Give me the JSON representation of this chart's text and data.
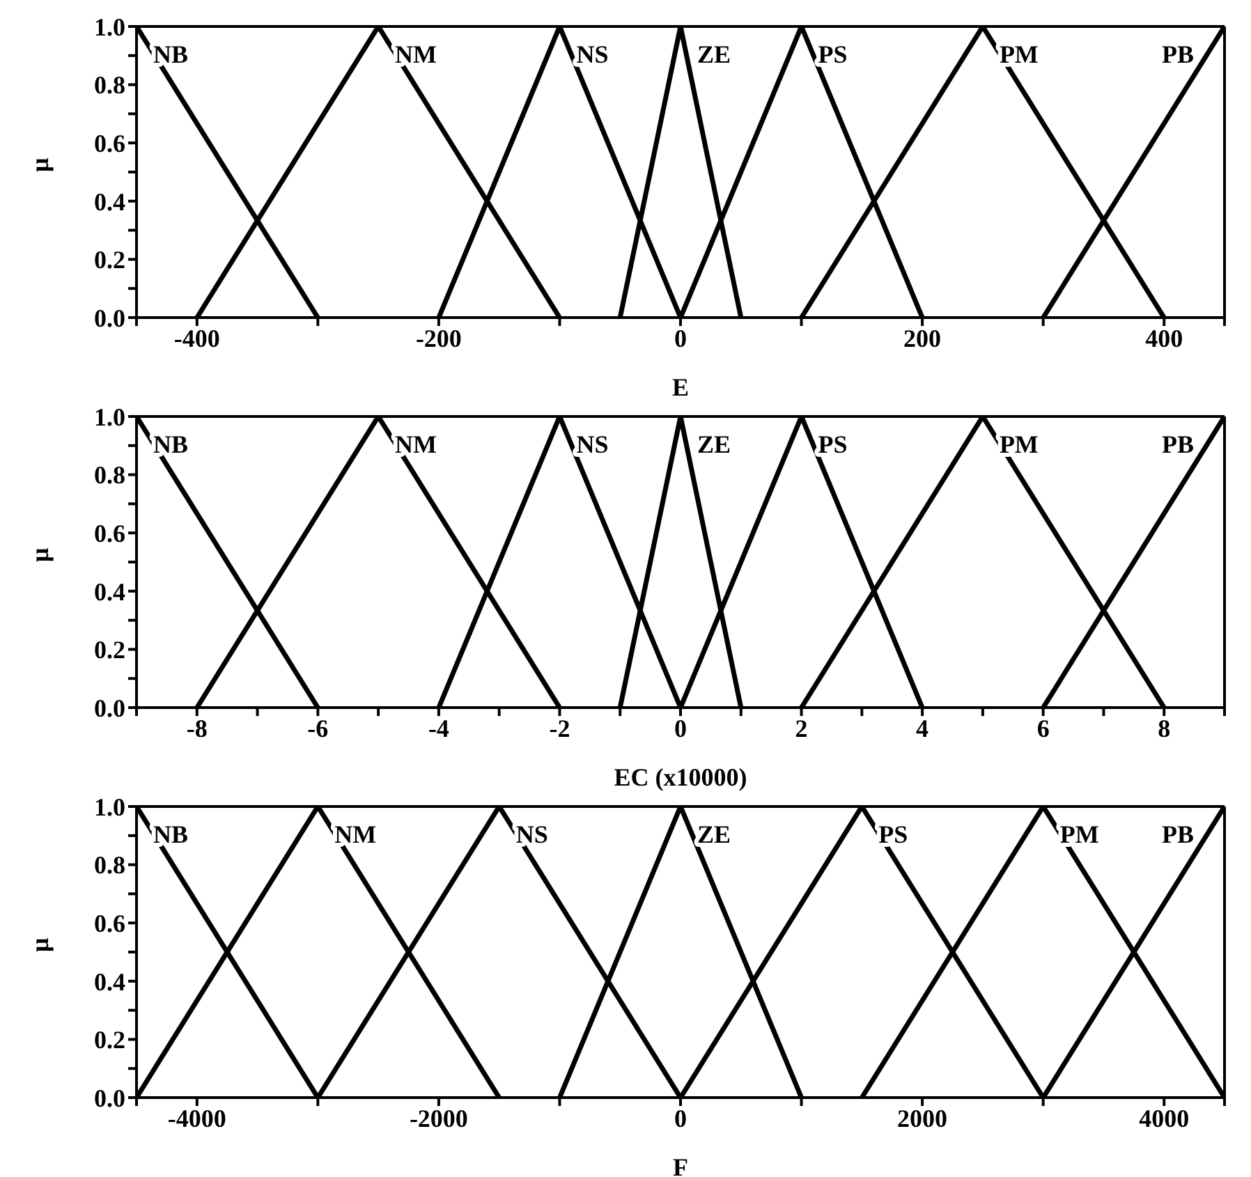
{
  "chart_data": [
    {
      "type": "line",
      "xlabel": "E",
      "ylabel": "μ",
      "xlim": [
        -450,
        450
      ],
      "xticks": [
        {
          "value": -450,
          "label": null
        },
        -400,
        {
          "value": -300,
          "label": null
        },
        -200,
        {
          "value": -100,
          "label": null
        },
        0,
        {
          "value": 100,
          "label": null
        },
        200,
        {
          "value": 300,
          "label": null
        },
        400,
        {
          "value": 450,
          "label": null
        }
      ],
      "ylim": [
        0,
        1
      ],
      "yticks": [
        {
          "value": 0,
          "label": "0.0"
        },
        {
          "value": 0.1,
          "label": null
        },
        {
          "value": 0.2,
          "label": "0.2"
        },
        {
          "value": 0.3,
          "label": null
        },
        {
          "value": 0.4,
          "label": "0.4"
        },
        {
          "value": 0.5,
          "label": null
        },
        {
          "value": 0.6,
          "label": "0.6"
        },
        {
          "value": 0.7,
          "label": null
        },
        {
          "value": 0.8,
          "label": "0.8"
        },
        {
          "value": 0.9,
          "label": null
        },
        {
          "value": 1,
          "label": "1.0"
        }
      ],
      "series": [
        {
          "name": "NB",
          "color": "#000000",
          "x": [
            -450,
            -300
          ],
          "values": [
            1,
            0
          ]
        },
        {
          "name": "NM",
          "color": "#000000",
          "x": [
            -400,
            -250,
            -100
          ],
          "values": [
            0,
            1,
            0
          ]
        },
        {
          "name": "NS",
          "color": "#000000",
          "x": [
            -200,
            -100,
            0
          ],
          "values": [
            0,
            1,
            0
          ]
        },
        {
          "name": "ZE",
          "color": "#000000",
          "x": [
            -50,
            0,
            50
          ],
          "values": [
            0,
            1,
            0
          ]
        },
        {
          "name": "PS",
          "color": "#000000",
          "x": [
            0,
            100,
            200
          ],
          "values": [
            0,
            1,
            0
          ]
        },
        {
          "name": "PM",
          "color": "#000000",
          "x": [
            100,
            250,
            400
          ],
          "values": [
            0,
            1,
            0
          ]
        },
        {
          "name": "PB",
          "color": "#000000",
          "x": [
            300,
            450
          ],
          "values": [
            0,
            1
          ]
        }
      ]
    },
    {
      "type": "line",
      "xlabel": "EC (x10000)",
      "ylabel": "μ",
      "xlim": [
        -9,
        9
      ],
      "xticks": [
        {
          "value": -9,
          "label": null
        },
        -8,
        {
          "value": -7,
          "label": null
        },
        -6,
        {
          "value": -5,
          "label": null
        },
        -4,
        {
          "value": -3,
          "label": null
        },
        -2,
        {
          "value": -1,
          "label": null
        },
        0,
        {
          "value": 1,
          "label": null
        },
        2,
        {
          "value": 3,
          "label": null
        },
        4,
        {
          "value": 5,
          "label": null
        },
        6,
        {
          "value": 7,
          "label": null
        },
        8,
        {
          "value": 9,
          "label": null
        }
      ],
      "ylim": [
        0,
        1
      ],
      "yticks": [
        {
          "value": 0,
          "label": "0.0"
        },
        {
          "value": 0.1,
          "label": null
        },
        {
          "value": 0.2,
          "label": "0.2"
        },
        {
          "value": 0.3,
          "label": null
        },
        {
          "value": 0.4,
          "label": "0.4"
        },
        {
          "value": 0.5,
          "label": null
        },
        {
          "value": 0.6,
          "label": "0.6"
        },
        {
          "value": 0.7,
          "label": null
        },
        {
          "value": 0.8,
          "label": "0.8"
        },
        {
          "value": 0.9,
          "label": null
        },
        {
          "value": 1,
          "label": "1.0"
        }
      ],
      "series": [
        {
          "name": "NB",
          "color": "#000000",
          "x": [
            -9,
            -6
          ],
          "values": [
            1,
            0
          ]
        },
        {
          "name": "NM",
          "color": "#000000",
          "x": [
            -8,
            -5,
            -2
          ],
          "values": [
            0,
            1,
            0
          ]
        },
        {
          "name": "NS",
          "color": "#000000",
          "x": [
            -4,
            -2,
            0
          ],
          "values": [
            0,
            1,
            0
          ]
        },
        {
          "name": "ZE",
          "color": "#000000",
          "x": [
            -1,
            0,
            1
          ],
          "values": [
            0,
            1,
            0
          ]
        },
        {
          "name": "PS",
          "color": "#000000",
          "x": [
            0,
            2,
            4
          ],
          "values": [
            0,
            1,
            0
          ]
        },
        {
          "name": "PM",
          "color": "#000000",
          "x": [
            2,
            5,
            8
          ],
          "values": [
            0,
            1,
            0
          ]
        },
        {
          "name": "PB",
          "color": "#000000",
          "x": [
            6,
            9
          ],
          "values": [
            0,
            1
          ]
        }
      ]
    },
    {
      "type": "line",
      "xlabel": "F",
      "ylabel": "μ",
      "xlim": [
        -4500,
        4500
      ],
      "xticks": [
        {
          "value": -4500,
          "label": null
        },
        -4000,
        {
          "value": -3000,
          "label": null
        },
        -2000,
        {
          "value": -1000,
          "label": null
        },
        0,
        {
          "value": 1000,
          "label": null
        },
        2000,
        {
          "value": 3000,
          "label": null
        },
        4000,
        {
          "value": 4500,
          "label": null
        }
      ],
      "ylim": [
        0,
        1
      ],
      "yticks": [
        {
          "value": 0,
          "label": "0.0"
        },
        {
          "value": 0.1,
          "label": null
        },
        {
          "value": 0.2,
          "label": "0.2"
        },
        {
          "value": 0.3,
          "label": null
        },
        {
          "value": 0.4,
          "label": "0.4"
        },
        {
          "value": 0.5,
          "label": null
        },
        {
          "value": 0.6,
          "label": "0.6"
        },
        {
          "value": 0.7,
          "label": null
        },
        {
          "value": 0.8,
          "label": "0.8"
        },
        {
          "value": 0.9,
          "label": null
        },
        {
          "value": 1,
          "label": "1.0"
        }
      ],
      "series": [
        {
          "name": "NB",
          "color": "#000000",
          "x": [
            -4500,
            -3000
          ],
          "values": [
            1,
            0
          ]
        },
        {
          "name": "NM",
          "color": "#000000",
          "x": [
            -4500,
            -3000,
            -1500
          ],
          "values": [
            0,
            1,
            0
          ]
        },
        {
          "name": "NS",
          "color": "#000000",
          "x": [
            -3000,
            -1500,
            0
          ],
          "values": [
            0,
            1,
            0
          ]
        },
        {
          "name": "ZE",
          "color": "#000000",
          "x": [
            -1000,
            0,
            1000
          ],
          "values": [
            0,
            1,
            0
          ]
        },
        {
          "name": "PS",
          "color": "#000000",
          "x": [
            0,
            1500,
            3000
          ],
          "values": [
            0,
            1,
            0
          ]
        },
        {
          "name": "PM",
          "color": "#000000",
          "x": [
            1500,
            3000,
            4500
          ],
          "values": [
            0,
            1,
            0
          ]
        },
        {
          "name": "PB",
          "color": "#000000",
          "x": [
            3000,
            4500
          ],
          "values": [
            0,
            1
          ]
        }
      ]
    }
  ]
}
